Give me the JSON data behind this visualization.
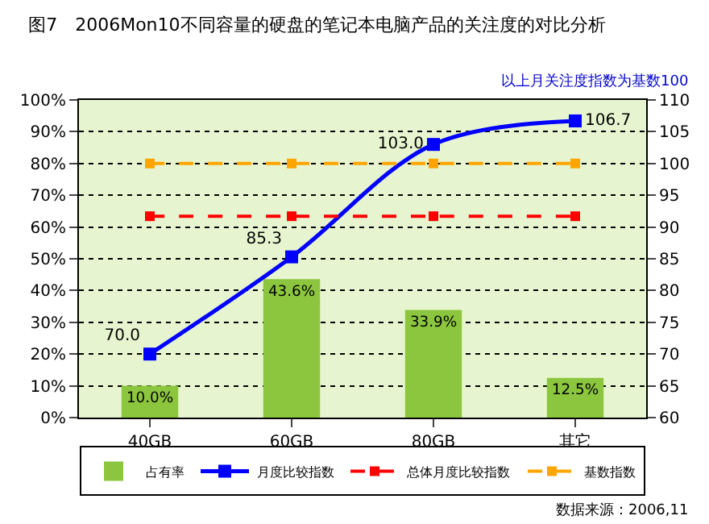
{
  "chart_data": {
    "type": "bar",
    "title": "图7　2006Mon10不同容量的硬盘的笔记本电脑产品的关注度的对比分析",
    "subtitle": "以上月关注度指数为基数100",
    "annotations": [
      "数据来源：2006,11"
    ],
    "categories": [
      "40GB",
      "60GB",
      "80GB",
      "其它"
    ],
    "series": [
      {
        "name": "占有率",
        "color": "#8cc63f",
        "values": [
          10.0,
          43.6,
          33.9,
          12.5
        ],
        "value_labels": [
          "10.0%",
          "43.6%",
          "33.9%",
          "12.5%"
        ]
      },
      {
        "name": "月度比较指数",
        "type": "line",
        "axis": "y2",
        "color": "#0000ff",
        "marker": "square",
        "line_style": "solid",
        "values": [
          70.0,
          85.3,
          103.0,
          106.7
        ],
        "value_labels": [
          "70.0",
          "85.3",
          "103.0",
          "106.7"
        ]
      },
      {
        "name": "总体月度比较指数",
        "type": "line",
        "axis": "y2",
        "color": "#ff0000",
        "marker": "square",
        "line_style": "dashed",
        "values": [
          91.7,
          91.7,
          91.7,
          91.7
        ]
      },
      {
        "name": "基数指数",
        "type": "line",
        "axis": "y2",
        "color": "#ffa500",
        "marker": "square",
        "line_style": "dashed",
        "values": [
          100,
          100,
          100,
          100
        ]
      }
    ],
    "ylim": [
      0,
      100
    ],
    "yticks": [
      {
        "value": 0,
        "label": "0%"
      },
      {
        "value": 10,
        "label": "10%"
      },
      {
        "value": 20,
        "label": "20%"
      },
      {
        "value": 30,
        "label": "30%"
      },
      {
        "value": 40,
        "label": "40%"
      },
      {
        "value": 50,
        "label": "50%"
      },
      {
        "value": 60,
        "label": "60%"
      },
      {
        "value": 70,
        "label": "70%"
      },
      {
        "value": 80,
        "label": "80%"
      },
      {
        "value": 90,
        "label": "90%"
      },
      {
        "value": 100,
        "label": "100%"
      }
    ],
    "y2lim": [
      60,
      110
    ],
    "y2ticks": [
      60,
      65,
      70,
      75,
      80,
      85,
      90,
      95,
      100,
      105,
      110
    ],
    "grid": "y",
    "legend": "bottom"
  }
}
